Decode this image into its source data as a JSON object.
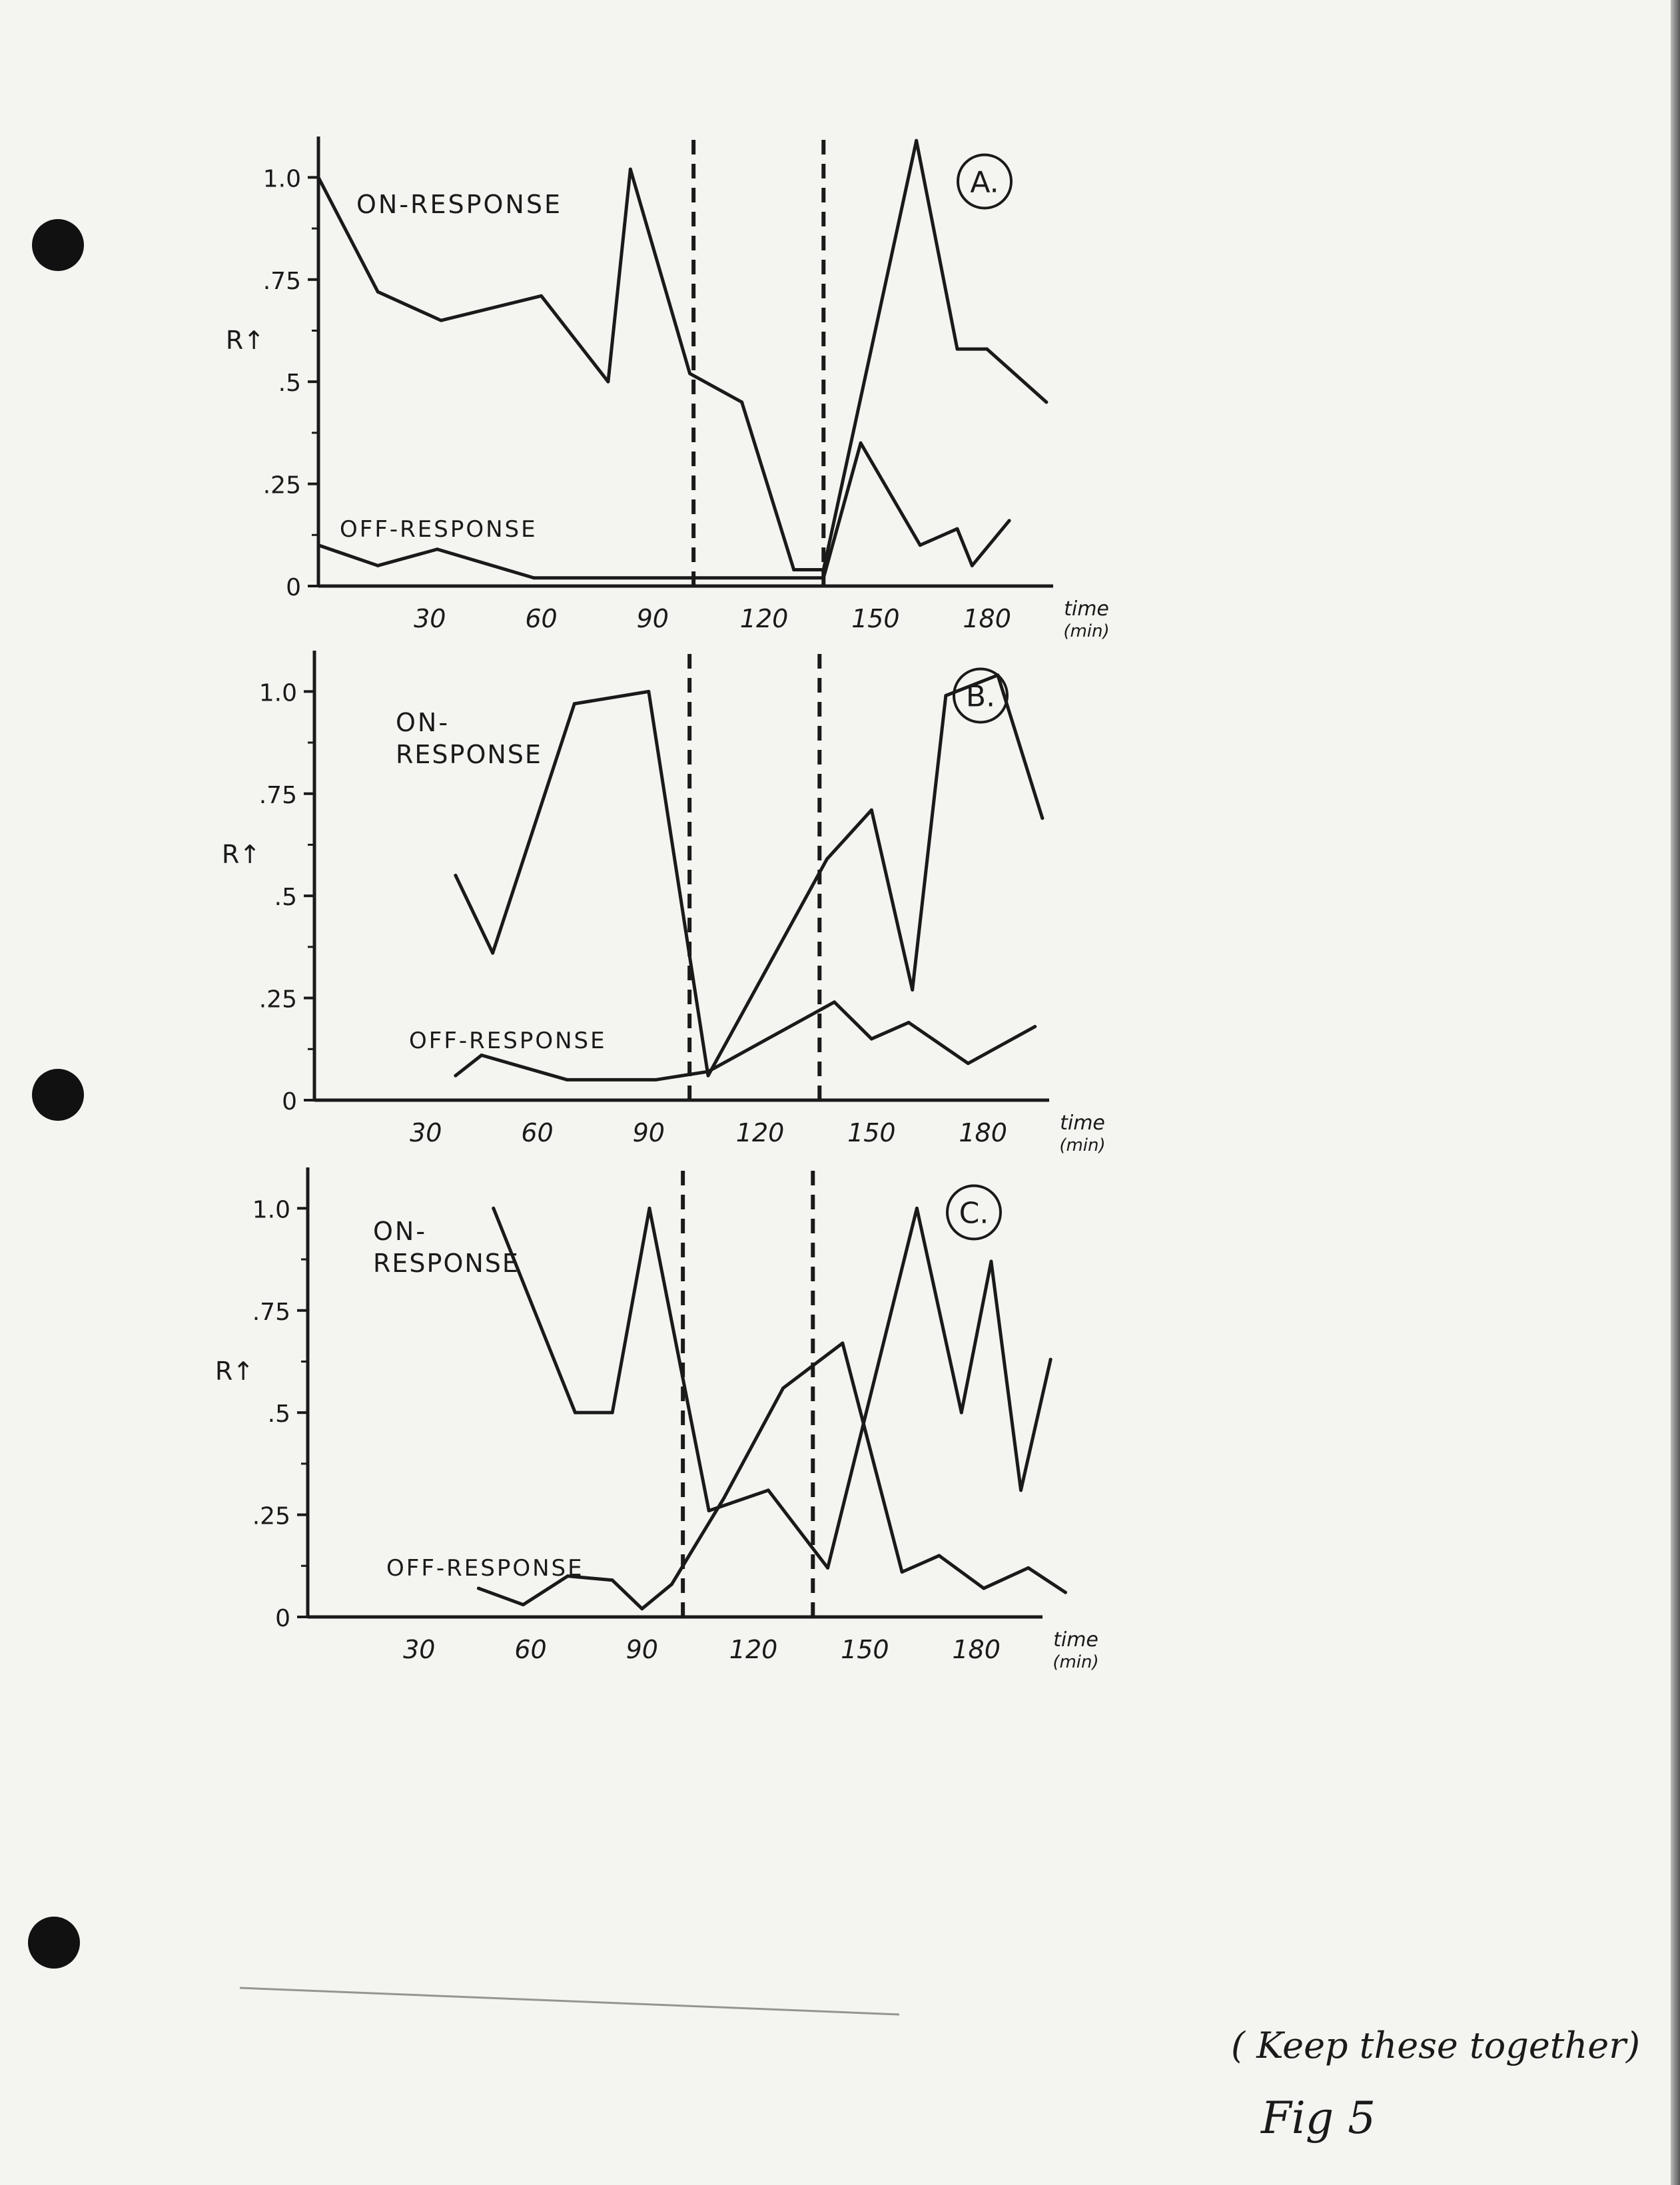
{
  "chart_data": [
    {
      "type": "line",
      "panel_label": "A.",
      "ylabel": "R↑",
      "xlabel_line1": "time",
      "xlabel_line2": "(min)",
      "x_ticks": [
        30,
        60,
        90,
        120,
        150,
        180
      ],
      "x_tick_labels": [
        "30",
        "60",
        "90",
        "120",
        "150",
        "180"
      ],
      "y_ticks": [
        0,
        0.25,
        0.5,
        0.75,
        1.0
      ],
      "y_tick_labels": [
        "0",
        ".25",
        ".5",
        ".75",
        "1.0"
      ],
      "xlim": [
        0,
        205
      ],
      "ylim": [
        0,
        1.1
      ],
      "dashed_lines_x": [
        101,
        136
      ],
      "series": [
        {
          "name": "ON-RESPONSE",
          "x": [
            0,
            16,
            33,
            60,
            78,
            84,
            100,
            114,
            128,
            136,
            161,
            172,
            180,
            196
          ],
          "y": [
            1.0,
            0.72,
            0.65,
            0.71,
            0.5,
            1.02,
            0.52,
            0.45,
            0.04,
            0.04,
            1.09,
            0.58,
            0.58,
            0.45
          ]
        },
        {
          "name": "OFF-RESPONSE",
          "x": [
            0,
            16,
            32,
            58,
            136,
            146,
            162,
            172,
            176,
            186
          ],
          "y": [
            0.1,
            0.05,
            0.09,
            0.02,
            0.02,
            0.35,
            0.1,
            0.14,
            0.05,
            0.16
          ]
        }
      ]
    },
    {
      "type": "line",
      "panel_label": "B.",
      "ylabel": "R↑",
      "xlabel_line1": "time",
      "xlabel_line2": "(min)",
      "x_ticks": [
        30,
        60,
        90,
        120,
        150,
        180
      ],
      "x_tick_labels": [
        "30",
        "60",
        "90",
        "120",
        "150",
        "180"
      ],
      "y_ticks": [
        0,
        0.25,
        0.5,
        0.75,
        1.0
      ],
      "y_tick_labels": [
        "0",
        ".25",
        ".5",
        ".75",
        "1.0"
      ],
      "xlim": [
        0,
        205
      ],
      "ylim": [
        0,
        1.1
      ],
      "dashed_lines_x": [
        101,
        136
      ],
      "series": [
        {
          "name": "ON-RESPONSE",
          "x": [
            38,
            48,
            70,
            90,
            106,
            138,
            150,
            161,
            170,
            184,
            196
          ],
          "y": [
            0.55,
            0.36,
            0.97,
            1.0,
            0.06,
            0.59,
            0.71,
            0.27,
            0.99,
            1.04,
            0.69
          ]
        },
        {
          "name": "OFF-RESPONSE",
          "x": [
            38,
            45,
            68,
            92,
            106,
            124,
            140,
            150,
            160,
            176,
            194
          ],
          "y": [
            0.06,
            0.11,
            0.05,
            0.05,
            0.07,
            0.16,
            0.24,
            0.15,
            0.19,
            0.09,
            0.18
          ]
        }
      ]
    },
    {
      "type": "line",
      "panel_label": "C.",
      "ylabel": "R↑",
      "xlabel_line1": "time",
      "xlabel_line2": "(min)",
      "x_ticks": [
        30,
        60,
        90,
        120,
        150,
        180
      ],
      "x_tick_labels": [
        "30",
        "60",
        "90",
        "120",
        "150",
        "180"
      ],
      "y_ticks": [
        0,
        0.25,
        0.5,
        0.75,
        1.0
      ],
      "y_tick_labels": [
        "0",
        ".25",
        ".5",
        ".75",
        "1.0"
      ],
      "xlim": [
        0,
        205
      ],
      "ylim": [
        0,
        1.1
      ],
      "dashed_lines_x": [
        101,
        136
      ],
      "series": [
        {
          "name": "ON-RESPONSE",
          "x": [
            50,
            72,
            82,
            92,
            108,
            124,
            140,
            164,
            176,
            184,
            192,
            200
          ],
          "y": [
            1.0,
            0.5,
            0.5,
            1.0,
            0.26,
            0.31,
            0.12,
            1.0,
            0.5,
            0.87,
            0.31,
            0.63
          ]
        },
        {
          "name": "OFF-RESPONSE",
          "x": [
            46,
            58,
            70,
            82,
            90,
            98,
            112,
            128,
            144,
            160,
            170,
            182,
            194,
            204
          ],
          "y": [
            0.07,
            0.03,
            0.1,
            0.09,
            0.02,
            0.08,
            0.29,
            0.56,
            0.67,
            0.11,
            0.15,
            0.07,
            0.12,
            0.06
          ]
        }
      ]
    }
  ],
  "note": {
    "line1": "( Keep these together)",
    "line2": "Fig 5"
  }
}
